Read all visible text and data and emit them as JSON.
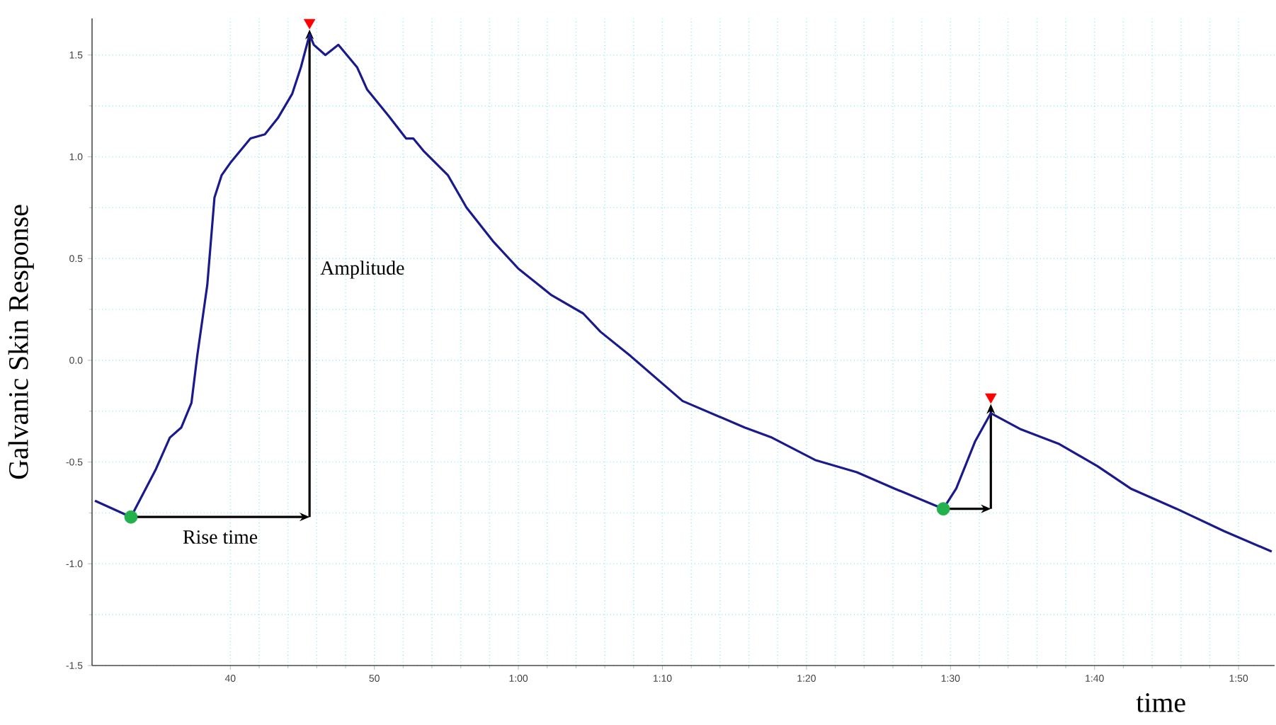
{
  "chart_data": {
    "type": "line",
    "xlabel": "time",
    "ylabel": "Galvanic Skin Response",
    "xlim": [
      30.4,
      112.5
    ],
    "ylim": [
      -1.5,
      1.68
    ],
    "xticks": [
      40,
      50,
      {
        "value": 60,
        "label": "1:00"
      },
      {
        "value": 70,
        "label": "1:10"
      },
      {
        "value": 80,
        "label": "1:20"
      },
      {
        "value": 90,
        "label": "1:30"
      },
      {
        "value": 100,
        "label": "1:40"
      },
      {
        "value": 110,
        "label": "1:50"
      }
    ],
    "yticks": [
      {
        "value": -1.5,
        "label": "-1.5"
      },
      {
        "value": -1.0,
        "label": "-1.0"
      },
      {
        "value": -0.5,
        "label": "-0.5"
      },
      {
        "value": 0.0,
        "label": "0.0"
      },
      {
        "value": 0.5,
        "label": "0.5"
      },
      {
        "value": 1.0,
        "label": "1.0"
      },
      {
        "value": 1.5,
        "label": "1.5"
      }
    ],
    "grid": true,
    "series": [
      {
        "color": "#1a1a8c",
        "line_style": "solid",
        "marker": "none",
        "x": [
          30.6,
          33.1,
          34.8,
          35.8,
          36.6,
          37.3,
          37.7,
          38.4,
          38.9,
          39.4,
          40.0,
          41.4,
          42.4,
          43.3,
          44.3,
          44.9,
          45.5,
          45.8,
          46.6,
          47.5,
          48.8,
          49.5,
          51.0,
          52.2,
          52.7,
          53.4,
          55.1,
          56.4,
          58.3,
          60.0,
          62.3,
          64.5,
          65.7,
          67.8,
          71.4,
          75.7,
          77.6,
          80.6,
          83.5,
          86.1,
          89.5,
          90.4,
          91.7,
          92.8,
          94.9,
          97.5,
          100.2,
          102.5,
          105.7,
          109.0,
          112.3
        ],
        "values": [
          -0.69,
          -0.77,
          -0.54,
          -0.38,
          -0.33,
          -0.21,
          0.02,
          0.37,
          0.8,
          0.91,
          0.97,
          1.09,
          1.11,
          1.19,
          1.31,
          1.44,
          1.6,
          1.55,
          1.5,
          1.55,
          1.44,
          1.33,
          1.2,
          1.09,
          1.09,
          1.03,
          0.91,
          0.75,
          0.58,
          0.45,
          0.32,
          0.23,
          0.14,
          0.02,
          -0.2,
          -0.33,
          -0.38,
          -0.49,
          -0.55,
          -0.63,
          -0.73,
          -0.63,
          -0.4,
          -0.26,
          -0.34,
          -0.41,
          -0.52,
          -0.63,
          -0.73,
          -0.84,
          -0.94
        ]
      },
      {
        "type": "scatter",
        "color": "#22b14c",
        "marker": "circle",
        "x": [
          33.1,
          89.5
        ],
        "values": [
          -0.77,
          -0.73
        ]
      },
      {
        "type": "scatter",
        "color": "#ff0000",
        "marker": "triangle",
        "x": [
          45.5,
          92.8
        ],
        "values": [
          1.66,
          -0.18
        ]
      }
    ],
    "annotations": [
      "Rise time",
      "Amplitude"
    ]
  }
}
